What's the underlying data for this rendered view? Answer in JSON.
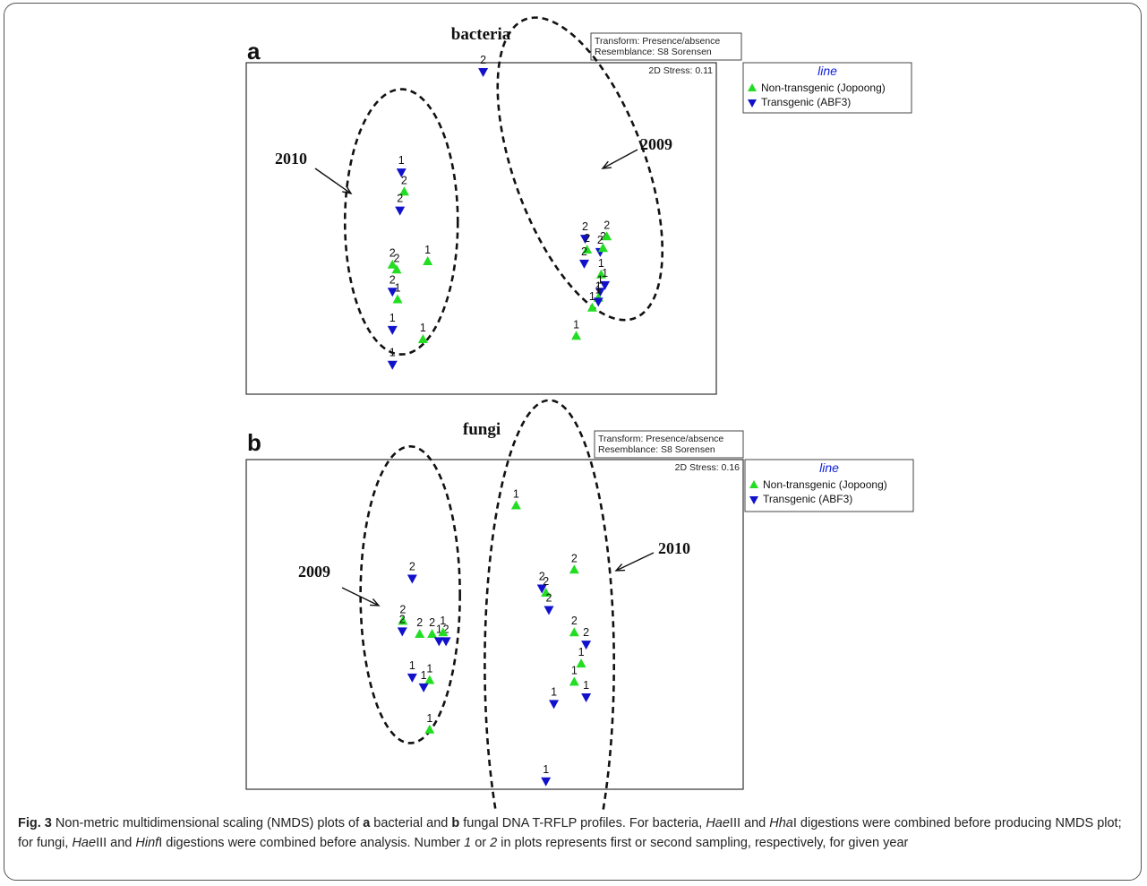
{
  "caption": {
    "fig_label": "Fig. 3",
    "t1": " Non-metric multidimensional scaling (NMDS) plots of ",
    "a": "a",
    "t2": " bacterial and ",
    "b": "b",
    "t3": " fungal DNA T-RFLP profiles. For bacteria, ",
    "hae1": "Hae",
    "t4": "III and ",
    "hha": "Hha",
    "t5": "I digestions were combined before producing NMDS plot; for fungi, ",
    "hae2": "Hae",
    "t6": "III and ",
    "hinf": "Hinf",
    "t7": "I digestions were combined before analysis. Number ",
    "n1": "1",
    "t8": " or ",
    "n2": "2",
    "t9": " in plots represents first or second sampling, respectively, for given year"
  },
  "chart_data": [
    {
      "type": "scatter",
      "panel_label": "a",
      "title": "bacteria",
      "transform_note": [
        "Transform: Presence/absence",
        "Resemblance: S8 Sorensen"
      ],
      "stress_label": "2D Stress: 0.11",
      "legend": {
        "title": "line",
        "placement": "right-outside",
        "entries": [
          {
            "label": "Non-transgenic (Jopoong)",
            "marker": "triangle-up",
            "color": "#22dd22"
          },
          {
            "label": "Transgenic (ABF3)",
            "marker": "triangle-down",
            "color": "#1111cc"
          }
        ]
      },
      "xlim": [
        0,
        100
      ],
      "ylim": [
        0,
        100
      ],
      "groups": [
        {
          "label": "2010",
          "center": [
            33,
            52
          ],
          "radii": [
            12,
            40
          ]
        },
        {
          "label": "2009",
          "center": [
            71,
            68
          ],
          "radii": [
            14,
            48
          ]
        }
      ],
      "points": [
        {
          "x": 50.4,
          "y": 97.3,
          "series": "Transgenic (ABF3)",
          "label": "2"
        },
        {
          "x": 33.0,
          "y": 67.0,
          "series": "Transgenic (ABF3)",
          "label": "1"
        },
        {
          "x": 33.6,
          "y": 61.0,
          "series": "Non-transgenic (Jopoong)",
          "label": "2"
        },
        {
          "x": 32.7,
          "y": 55.5,
          "series": "Transgenic (ABF3)",
          "label": "2"
        },
        {
          "x": 31.1,
          "y": 39.0,
          "series": "Non-transgenic (Jopoong)",
          "label": "2"
        },
        {
          "x": 32.0,
          "y": 37.5,
          "series": "Non-transgenic (Jopoong)",
          "label": "2"
        },
        {
          "x": 38.6,
          "y": 40.0,
          "series": "Non-transgenic (Jopoong)",
          "label": "1"
        },
        {
          "x": 31.1,
          "y": 31.0,
          "series": "Transgenic (ABF3)",
          "label": "2"
        },
        {
          "x": 32.2,
          "y": 28.5,
          "series": "Non-transgenic (Jopoong)",
          "label": "1"
        },
        {
          "x": 31.1,
          "y": 19.5,
          "series": "Transgenic (ABF3)",
          "label": "1"
        },
        {
          "x": 37.6,
          "y": 16.5,
          "series": "Non-transgenic (Jopoong)",
          "label": "1"
        },
        {
          "x": 31.1,
          "y": 9.0,
          "series": "Transgenic (ABF3)",
          "label": "1"
        },
        {
          "x": 72.1,
          "y": 47.0,
          "series": "Transgenic (ABF3)",
          "label": "2"
        },
        {
          "x": 72.5,
          "y": 43.5,
          "series": "Non-transgenic (Jopoong)",
          "label": "2"
        },
        {
          "x": 71.9,
          "y": 39.5,
          "series": "Transgenic (ABF3)",
          "label": "2"
        },
        {
          "x": 75.3,
          "y": 43.0,
          "series": "Transgenic (ABF3)",
          "label": "2"
        },
        {
          "x": 75.9,
          "y": 44.0,
          "series": "Non-transgenic (Jopoong)",
          "label": "2"
        },
        {
          "x": 76.7,
          "y": 47.5,
          "series": "Non-transgenic (Jopoong)",
          "label": "2"
        },
        {
          "x": 75.5,
          "y": 36.0,
          "series": "Non-transgenic (Jopoong)",
          "label": "1"
        },
        {
          "x": 76.3,
          "y": 33.0,
          "series": "Transgenic (ABF3)",
          "label": "1"
        },
        {
          "x": 75.3,
          "y": 31.0,
          "series": "Transgenic (ABF3)",
          "label": "1"
        },
        {
          "x": 74.9,
          "y": 29.0,
          "series": "Non-transgenic (Jopoong)",
          "label": "1"
        },
        {
          "x": 74.9,
          "y": 28.0,
          "series": "Transgenic (ABF3)",
          "label": "1"
        },
        {
          "x": 73.6,
          "y": 26.0,
          "series": "Non-transgenic (Jopoong)",
          "label": "1"
        },
        {
          "x": 70.2,
          "y": 17.5,
          "series": "Non-transgenic (Jopoong)",
          "label": "1"
        }
      ]
    },
    {
      "type": "scatter",
      "panel_label": "b",
      "title": "fungi",
      "transform_note": [
        "Transform: Presence/absence",
        "Resemblance: S8 Sorensen"
      ],
      "stress_label": "2D Stress: 0.16",
      "legend": {
        "title": "line",
        "placement": "right-outside",
        "entries": [
          {
            "label": "Non-transgenic (Jopoong)",
            "marker": "triangle-up",
            "color": "#22dd22"
          },
          {
            "label": "Transgenic (ABF3)",
            "marker": "triangle-down",
            "color": "#1111cc"
          }
        ]
      },
      "xlim": [
        0,
        100
      ],
      "ylim": [
        0,
        100
      ],
      "groups": [
        {
          "label": "2009",
          "center": [
            33,
            59
          ],
          "radii": [
            10,
            45
          ]
        },
        {
          "label": "2010",
          "center": [
            61,
            38
          ],
          "radii": [
            13,
            80
          ]
        }
      ],
      "points": [
        {
          "x": 54.3,
          "y": 86.0,
          "series": "Non-transgenic (Jopoong)",
          "label": "1"
        },
        {
          "x": 33.4,
          "y": 64.0,
          "series": "Transgenic (ABF3)",
          "label": "2"
        },
        {
          "x": 66.0,
          "y": 66.5,
          "series": "Non-transgenic (Jopoong)",
          "label": "2"
        },
        {
          "x": 59.5,
          "y": 61.0,
          "series": "Transgenic (ABF3)",
          "label": "2"
        },
        {
          "x": 60.3,
          "y": 59.5,
          "series": "Non-transgenic (Jopoong)",
          "label": "2"
        },
        {
          "x": 60.9,
          "y": 54.5,
          "series": "Transgenic (ABF3)",
          "label": "2"
        },
        {
          "x": 31.5,
          "y": 51.0,
          "series": "Non-transgenic (Jopoong)",
          "label": "2"
        },
        {
          "x": 31.4,
          "y": 48.0,
          "series": "Transgenic (ABF3)",
          "label": "2"
        },
        {
          "x": 34.9,
          "y": 47.0,
          "series": "Non-transgenic (Jopoong)",
          "label": "2"
        },
        {
          "x": 37.4,
          "y": 47.0,
          "series": "Non-transgenic (Jopoong)",
          "label": "2"
        },
        {
          "x": 38.8,
          "y": 45.0,
          "series": "Transgenic (ABF3)",
          "label": "1"
        },
        {
          "x": 40.2,
          "y": 45.0,
          "series": "Transgenic (ABF3)",
          "label": "2"
        },
        {
          "x": 39.6,
          "y": 47.5,
          "series": "Non-transgenic (Jopoong)",
          "label": "1"
        },
        {
          "x": 66.0,
          "y": 47.5,
          "series": "Non-transgenic (Jopoong)",
          "label": "2"
        },
        {
          "x": 68.4,
          "y": 44.0,
          "series": "Transgenic (ABF3)",
          "label": "2"
        },
        {
          "x": 67.4,
          "y": 38.0,
          "series": "Non-transgenic (Jopoong)",
          "label": "1"
        },
        {
          "x": 33.4,
          "y": 34.0,
          "series": "Transgenic (ABF3)",
          "label": "1"
        },
        {
          "x": 36.9,
          "y": 33.0,
          "series": "Non-transgenic (Jopoong)",
          "label": "1"
        },
        {
          "x": 35.7,
          "y": 31.0,
          "series": "Transgenic (ABF3)",
          "label": "1"
        },
        {
          "x": 66.0,
          "y": 32.5,
          "series": "Non-transgenic (Jopoong)",
          "label": "1"
        },
        {
          "x": 68.4,
          "y": 28.0,
          "series": "Transgenic (ABF3)",
          "label": "1"
        },
        {
          "x": 61.9,
          "y": 26.0,
          "series": "Transgenic (ABF3)",
          "label": "1"
        },
        {
          "x": 36.9,
          "y": 18.0,
          "series": "Non-transgenic (Jopoong)",
          "label": "1"
        },
        {
          "x": 60.3,
          "y": 2.5,
          "series": "Transgenic (ABF3)",
          "label": "1"
        }
      ]
    }
  ]
}
